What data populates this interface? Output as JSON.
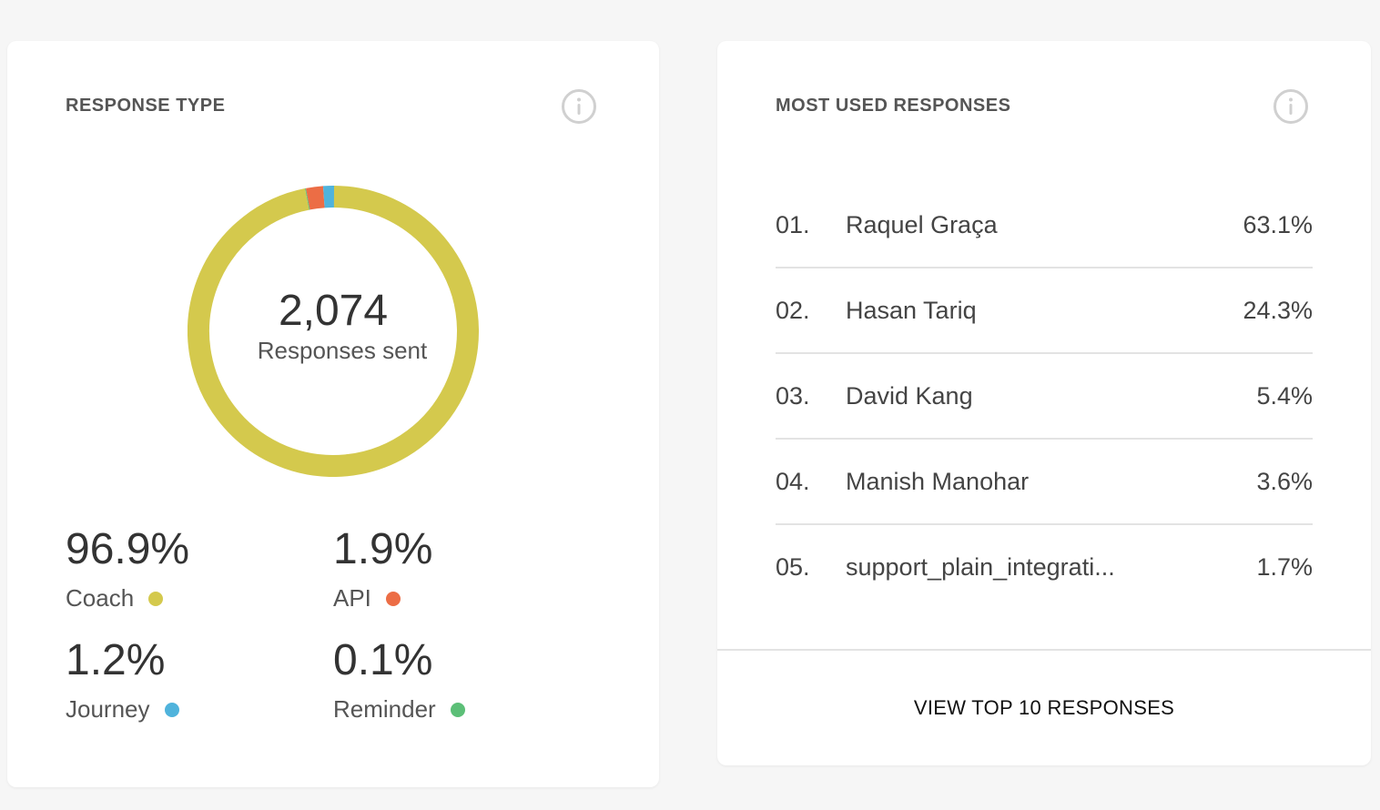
{
  "response_type": {
    "title": "RESPONSE TYPE",
    "total": "2,074",
    "total_caption": "Responses sent",
    "segments": [
      {
        "label": "Coach",
        "value": "96.9%",
        "fraction": 0.969,
        "color": "#d4c94d"
      },
      {
        "label": "API",
        "value": "1.9%",
        "fraction": 0.019,
        "color": "#ec6d45"
      },
      {
        "label": "Journey",
        "value": "1.2%",
        "fraction": 0.012,
        "color": "#4fb3dc"
      },
      {
        "label": "Reminder",
        "value": "0.1%",
        "fraction": 0.001,
        "color": "#5cbf77"
      }
    ]
  },
  "most_used": {
    "title": "MOST USED RESPONSES",
    "rows": [
      {
        "num": "01.",
        "name": "Raquel Graça",
        "pct": "63.1%"
      },
      {
        "num": "02.",
        "name": "Hasan Tariq",
        "pct": "24.3%"
      },
      {
        "num": "03.",
        "name": "David Kang",
        "pct": "5.4%"
      },
      {
        "num": "04.",
        "name": "Manish Manohar",
        "pct": "3.6%"
      },
      {
        "num": "05.",
        "name": "support_plain_integrati...",
        "pct": "1.7%"
      }
    ],
    "footer_link": "VIEW TOP 10 RESPONSES"
  },
  "icons": {
    "info": "info-circle-icon"
  }
}
